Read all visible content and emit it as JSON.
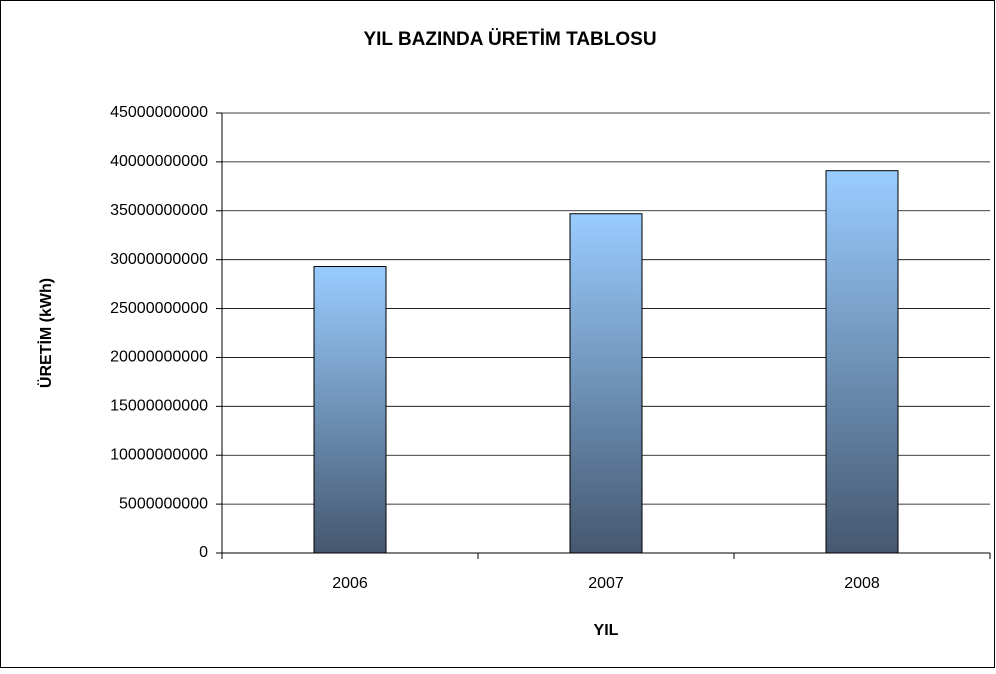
{
  "chart_data": {
    "type": "bar",
    "title": "YIL BAZINDA ÜRETİM TABLOSU",
    "x_label": "YIL",
    "y_label": "ÜRETİM (kWh)",
    "categories": [
      "2006",
      "2007",
      "2008"
    ],
    "values": [
      29300000000,
      34700000000,
      39100000000
    ],
    "gradient": [
      "#99ccff",
      "#45586f"
    ],
    "ylim": [
      0,
      45000000000
    ],
    "yticks": [
      0,
      5000000000,
      10000000000,
      15000000000,
      20000000000,
      25000000000,
      30000000000,
      35000000000,
      40000000000,
      45000000000
    ],
    "grid": true
  }
}
